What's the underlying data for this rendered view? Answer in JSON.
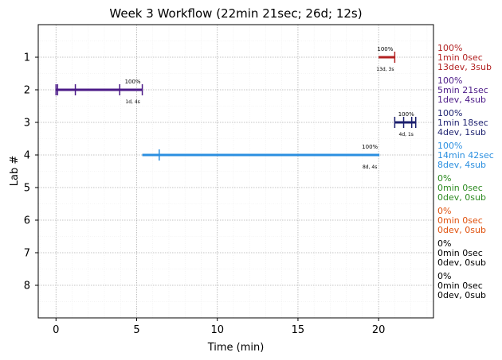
{
  "chart_data": {
    "type": "timeline",
    "title": "Week 3 Workflow (22min 21sec; 26d; 12s)",
    "xlabel": "Time (min)",
    "ylabel": "Lab #",
    "xlim": [
      -1.1,
      23.4
    ],
    "ylim": [
      0,
      9
    ],
    "x_ticks": [
      0,
      5,
      10,
      15,
      20
    ],
    "y_ticks": [
      1,
      2,
      3,
      4,
      5,
      6,
      7,
      8
    ],
    "grid": true,
    "labs": [
      {
        "lab": 1,
        "color": "#b22222",
        "start": 20.0,
        "end": 21.0,
        "events": [
          21.0
        ],
        "pct_label": "100%",
        "count_label": "13d, 3s",
        "summary": [
          "100%",
          "1min 0sec",
          "13dev, 3sub"
        ]
      },
      {
        "lab": 2,
        "color": "#4b1a87",
        "start": 0.0,
        "end": 5.35,
        "events": [
          0.0,
          0.1,
          1.2,
          3.95,
          5.35
        ],
        "pct_label": "100%",
        "count_label": "1d, 4s",
        "summary": [
          "100%",
          "5min 21sec",
          "1dev, 4sub"
        ]
      },
      {
        "lab": 3,
        "color": "#1b1f6e",
        "start": 21.0,
        "end": 22.3,
        "events": [
          21.0,
          21.55,
          22.05,
          22.3
        ],
        "pct_label": "100%",
        "count_label": "4d, 1s",
        "summary": [
          "100%",
          "1min 18sec",
          "4dev, 1sub"
        ]
      },
      {
        "lab": 4,
        "color": "#2b8fe0",
        "start": 5.35,
        "end": 20.05,
        "events": [
          6.4
        ],
        "pct_label": "100%",
        "count_label": "8d, 4s",
        "summary": [
          "100%",
          "14min 42sec",
          "8dev, 4sub"
        ]
      },
      {
        "lab": 5,
        "color": "#2e8b22",
        "summary": [
          "0%",
          "0min 0sec",
          "0dev, 0sub"
        ]
      },
      {
        "lab": 6,
        "color": "#e0520e",
        "summary": [
          "0%",
          "0min 0sec",
          "0dev, 0sub"
        ]
      },
      {
        "lab": 7,
        "color": "#000000",
        "summary": [
          "0%",
          "0min 0sec",
          "0dev, 0sub"
        ]
      },
      {
        "lab": 8,
        "color": "#000000",
        "summary": [
          "0%",
          "0min 0sec",
          "0dev, 0sub"
        ]
      }
    ]
  }
}
